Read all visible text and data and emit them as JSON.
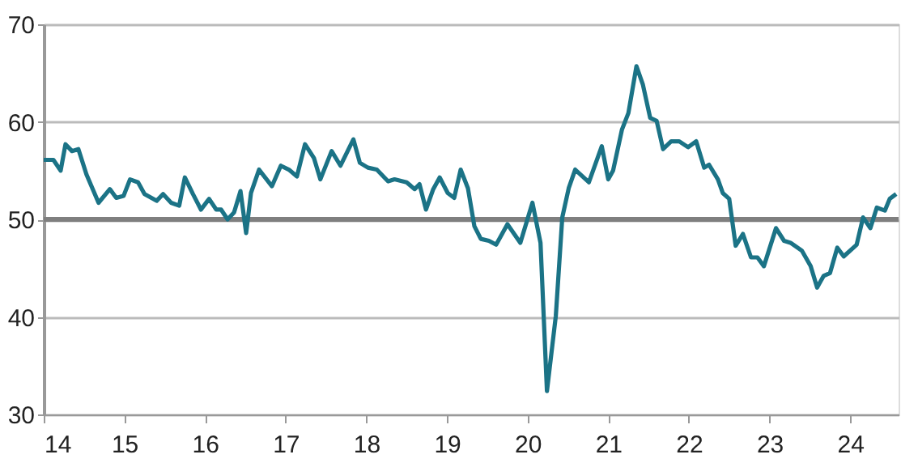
{
  "chart_data": {
    "type": "line",
    "x": [
      14.0,
      14.12,
      14.21,
      14.27,
      14.35,
      14.43,
      14.53,
      14.68,
      14.82,
      14.9,
      14.99,
      15.07,
      15.17,
      15.25,
      15.4,
      15.48,
      15.58,
      15.68,
      15.75,
      15.85,
      15.95,
      16.05,
      16.14,
      16.2,
      16.28,
      16.36,
      16.44,
      16.51,
      16.57,
      16.67,
      16.83,
      16.94,
      17.04,
      17.14,
      17.24,
      17.35,
      17.43,
      17.57,
      17.68,
      17.84,
      17.92,
      18.02,
      18.13,
      18.27,
      18.35,
      18.5,
      18.6,
      18.66,
      18.74,
      18.83,
      18.91,
      19.01,
      19.09,
      19.17,
      19.26,
      19.34,
      19.42,
      19.52,
      19.61,
      19.75,
      19.91,
      20.06,
      20.16,
      20.24,
      20.35,
      20.43,
      20.51,
      20.59,
      20.76,
      20.92,
      21.0,
      21.06,
      21.17,
      21.25,
      21.35,
      21.43,
      21.52,
      21.6,
      21.68,
      21.78,
      21.88,
      21.99,
      22.09,
      22.19,
      22.25,
      22.36,
      22.42,
      22.5,
      22.58,
      22.67,
      22.77,
      22.85,
      22.93,
      23.08,
      23.18,
      23.26,
      23.4,
      23.51,
      23.59,
      23.67,
      23.75,
      23.84,
      23.92,
      24.08,
      24.16,
      24.25,
      24.33,
      24.43,
      24.49,
      24.57
    ],
    "series": [
      {
        "color": "#1b7386",
        "values": [
          56.1,
          56.1,
          55.0,
          57.7,
          57.0,
          57.2,
          54.6,
          51.7,
          53.1,
          52.2,
          52.4,
          54.1,
          53.8,
          52.6,
          51.9,
          52.6,
          51.7,
          51.4,
          54.3,
          52.6,
          51.0,
          52.1,
          51.0,
          51.0,
          50.0,
          50.7,
          52.9,
          48.6,
          52.7,
          55.1,
          53.4,
          55.5,
          55.1,
          54.4,
          57.7,
          56.3,
          54.1,
          57.0,
          55.5,
          58.2,
          55.8,
          55.3,
          55.1,
          53.9,
          54.1,
          53.8,
          53.1,
          53.6,
          51.0,
          53.1,
          54.3,
          52.7,
          52.2,
          55.1,
          53.2,
          49.3,
          48.0,
          47.8,
          47.4,
          49.5,
          47.6,
          51.7,
          47.6,
          32.4,
          40.1,
          50.2,
          53.2,
          55.1,
          53.8,
          57.5,
          54.1,
          55.0,
          59.2,
          60.9,
          65.7,
          63.8,
          60.4,
          60.1,
          57.2,
          58.0,
          58.0,
          57.4,
          58.0,
          55.3,
          55.6,
          54.1,
          52.7,
          52.1,
          47.3,
          48.5,
          46.1,
          46.1,
          45.2,
          49.1,
          47.8,
          47.6,
          46.8,
          45.2,
          43.0,
          44.2,
          44.5,
          47.1,
          46.2,
          47.4,
          50.2,
          49.1,
          51.2,
          50.9,
          52.1,
          52.6
        ]
      }
    ],
    "xlim": [
      14,
      24.6
    ],
    "xticks": [
      14,
      15,
      16,
      17,
      18,
      19,
      20,
      21,
      22,
      23,
      24
    ],
    "ylim": [
      30,
      70
    ],
    "yticks": [
      30,
      40,
      50,
      60,
      70
    ],
    "grid": "y",
    "line_style": "solid",
    "marker": "none",
    "ref_lines": [
      {
        "axis": "y",
        "value": 50,
        "color": "#7f7f7f",
        "line_style": "solid"
      }
    ]
  }
}
